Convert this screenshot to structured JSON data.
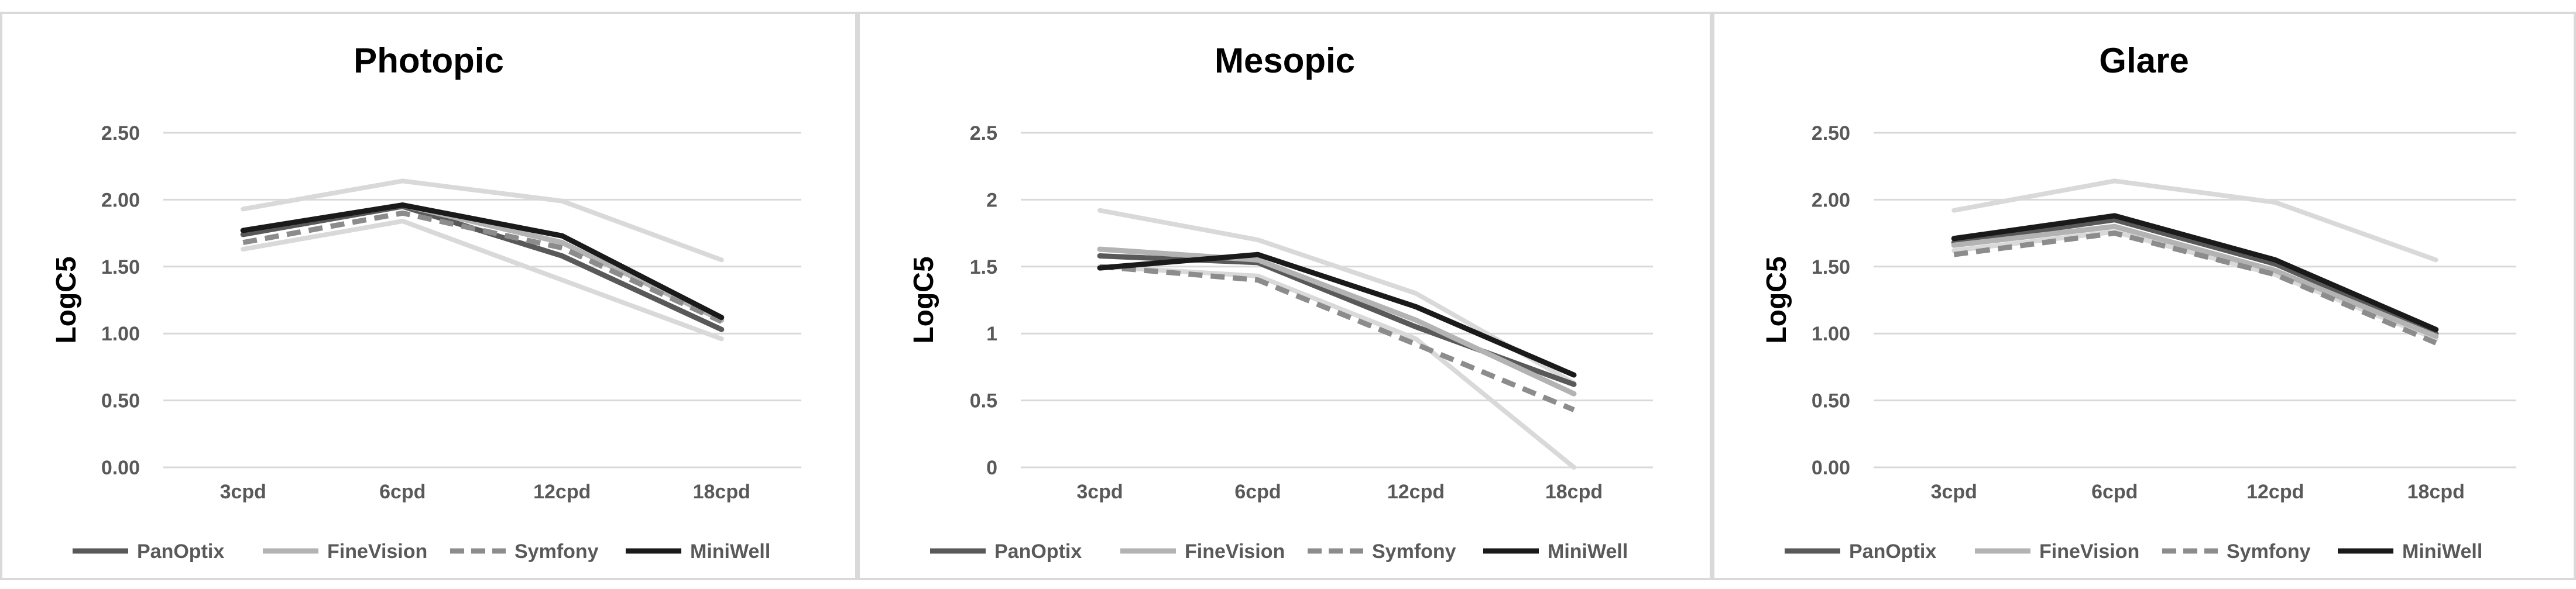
{
  "chart_data": [
    {
      "type": "line",
      "title": "Photopic",
      "ylabel": "LogC5",
      "xlabel": "",
      "categories": [
        "3cpd",
        "6cpd",
        "12cpd",
        "18cpd"
      ],
      "ylim": [
        0,
        2.5
      ],
      "yticks": [
        "0.00",
        "0.50",
        "1.00",
        "1.50",
        "2.00",
        "2.50"
      ],
      "grid": true,
      "legend_position": "bottom",
      "norm_upper": [
        1.93,
        2.14,
        1.99,
        1.55
      ],
      "norm_lower": [
        1.63,
        1.84,
        1.4,
        0.96
      ],
      "series": [
        {
          "name": "PanOptix",
          "values": [
            1.74,
            1.95,
            1.58,
            1.03
          ]
        },
        {
          "name": "FineVision",
          "values": [
            1.77,
            1.96,
            1.68,
            1.1
          ]
        },
        {
          "name": "Symfony",
          "values": [
            1.68,
            1.9,
            1.64,
            1.09
          ]
        },
        {
          "name": "MiniWell",
          "values": [
            1.77,
            1.96,
            1.73,
            1.12
          ]
        }
      ]
    },
    {
      "type": "line",
      "title": "Mesopic",
      "ylabel": "LogC5",
      "xlabel": "",
      "categories": [
        "3cpd",
        "6cpd",
        "12cpd",
        "18cpd"
      ],
      "ylim": [
        0,
        2.5
      ],
      "yticks": [
        "0",
        "0.5",
        "1",
        "1.5",
        "2",
        "2.5"
      ],
      "grid": true,
      "legend_position": "bottom",
      "norm_upper": [
        1.92,
        1.7,
        1.3,
        0.63
      ],
      "norm_lower": [
        1.5,
        1.43,
        0.96,
        0.0
      ],
      "series": [
        {
          "name": "PanOptix",
          "values": [
            1.58,
            1.53,
            1.05,
            0.62
          ]
        },
        {
          "name": "FineVision",
          "values": [
            1.63,
            1.55,
            1.1,
            0.55
          ]
        },
        {
          "name": "Symfony",
          "values": [
            1.5,
            1.4,
            0.92,
            0.43
          ]
        },
        {
          "name": "MiniWell",
          "values": [
            1.49,
            1.59,
            1.2,
            0.69
          ]
        }
      ]
    },
    {
      "type": "line",
      "title": "Glare",
      "ylabel": "LogC5",
      "xlabel": "",
      "categories": [
        "3cpd",
        "6cpd",
        "12cpd",
        "18cpd"
      ],
      "ylim": [
        0,
        2.5
      ],
      "yticks": [
        "0.00",
        "0.50",
        "1.00",
        "1.50",
        "2.00",
        "2.50"
      ],
      "grid": true,
      "legend_position": "bottom",
      "norm_upper": [
        1.92,
        2.14,
        1.98,
        1.55
      ],
      "norm_lower": [
        1.62,
        1.76,
        1.44,
        0.96
      ],
      "series": [
        {
          "name": "PanOptix",
          "values": [
            1.68,
            1.85,
            1.52,
            1.0
          ]
        },
        {
          "name": "FineVision",
          "values": [
            1.66,
            1.8,
            1.47,
            0.98
          ]
        },
        {
          "name": "Symfony",
          "values": [
            1.59,
            1.75,
            1.44,
            0.93
          ]
        },
        {
          "name": "MiniWell",
          "values": [
            1.71,
            1.88,
            1.55,
            1.03
          ]
        }
      ]
    }
  ],
  "styles": {
    "PanOptix": {
      "color": "#595959",
      "dash": ""
    },
    "FineVision": {
      "color": "#b3b3b3",
      "dash": ""
    },
    "Symfony": {
      "color": "#8c8c8c",
      "dash": "24 14"
    },
    "MiniWell": {
      "color": "#1a1a1a",
      "dash": ""
    },
    "norm": {
      "color": "#d9d9d9"
    },
    "grid": {
      "color": "#d9d9d9"
    }
  }
}
